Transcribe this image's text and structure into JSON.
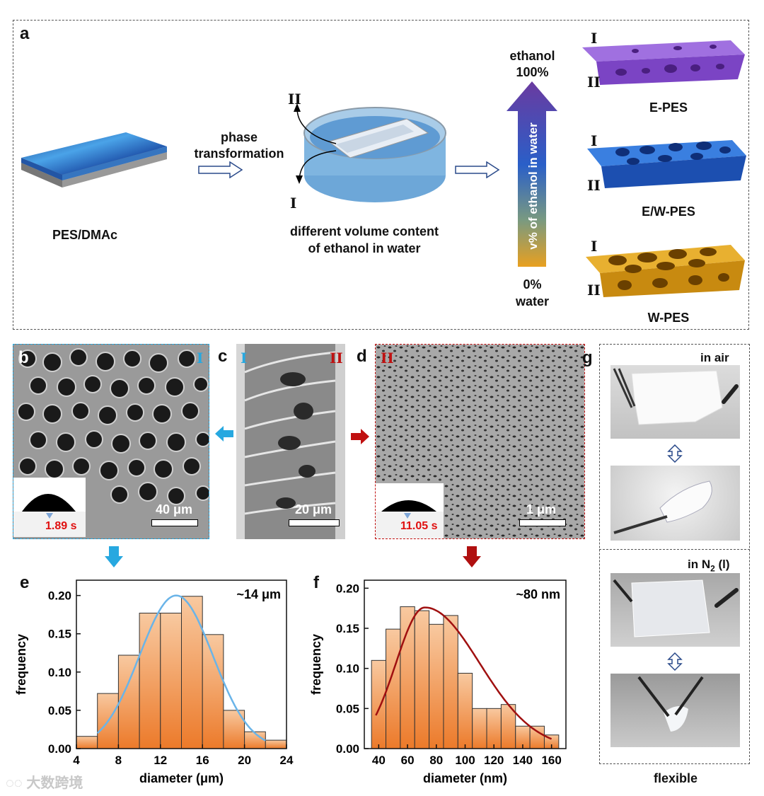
{
  "panel_labels": {
    "a": "a",
    "b": "b",
    "c": "c",
    "d": "d",
    "e": "e",
    "f": "f",
    "g": "g"
  },
  "roman": {
    "one": "I",
    "two": "II"
  },
  "scheme": {
    "precursor": "PES/DMAc",
    "process_line1": "phase",
    "process_line2": "transformation",
    "bath_line1": "different volume content",
    "bath_line2": "of ethanol in water",
    "top_line1": "ethanol",
    "top_line2": "100%",
    "bottom_line1": "0%",
    "bottom_line2": "water",
    "gradient_label": "v% of ethanol in water",
    "membranes": [
      "E-PES",
      "E/W-PES",
      "W-PES"
    ],
    "colors": {
      "e_pes": "#8a4fc9",
      "ew_pes": "#1f5fc2",
      "w_pes": "#d49a1a",
      "arrow_top": "#6a3aa0",
      "arrow_bottom": "#e8a020"
    }
  },
  "sem": {
    "b_scale": "40 μm",
    "b_time": "1.89 s",
    "c_scale": "20 μm",
    "d_scale": "1 μm",
    "d_time": "11.05 s"
  },
  "photos": {
    "air_label": "in air",
    "n2_label_pre": "in N",
    "n2_label_sub": "2",
    "n2_label_post": " (l)",
    "caption": "flexible"
  },
  "chart_data": [
    {
      "type": "bar",
      "panel": "e",
      "annotation": "~14 μm",
      "xlabel": "diameter (μm)",
      "ylabel": "frequency",
      "xlim": [
        4,
        24
      ],
      "ylim": [
        0,
        0.22
      ],
      "xticks": [
        4,
        8,
        12,
        16,
        20,
        24
      ],
      "yticks": [
        0.0,
        0.05,
        0.1,
        0.15,
        0.2
      ],
      "bin_width": 2,
      "x": [
        5,
        7,
        9,
        11,
        13,
        15,
        17,
        19,
        21,
        23
      ],
      "values": [
        0.016,
        0.072,
        0.122,
        0.177,
        0.177,
        0.199,
        0.149,
        0.05,
        0.022,
        0.011
      ],
      "fit": {
        "type": "gaussian",
        "center": 13.5,
        "sigma": 3.5,
        "peak": 0.2,
        "range": [
          6,
          22
        ],
        "color": "#6ab4e8"
      }
    },
    {
      "type": "bar",
      "panel": "f",
      "annotation": "~80 nm",
      "xlabel": "diameter (nm)",
      "ylabel": "frequency",
      "xlim": [
        30,
        170
      ],
      "ylim": [
        0,
        0.21
      ],
      "xticks": [
        40,
        60,
        80,
        100,
        120,
        140,
        160
      ],
      "yticks": [
        0.0,
        0.05,
        0.1,
        0.15,
        0.2
      ],
      "bin_width": 10,
      "x": [
        40,
        50,
        60,
        70,
        80,
        90,
        100,
        110,
        120,
        130,
        140,
        150,
        160
      ],
      "values": [
        0.11,
        0.149,
        0.177,
        0.172,
        0.155,
        0.166,
        0.094,
        0.05,
        0.05,
        0.055,
        0.028,
        0.028,
        0.017
      ],
      "fit": {
        "type": "lognormal-like",
        "center": 72,
        "sigma_left": 20,
        "sigma_right": 38,
        "peak": 0.176,
        "range": [
          38,
          160
        ],
        "color": "#a01010"
      }
    }
  ],
  "watermark": "大数跨境"
}
